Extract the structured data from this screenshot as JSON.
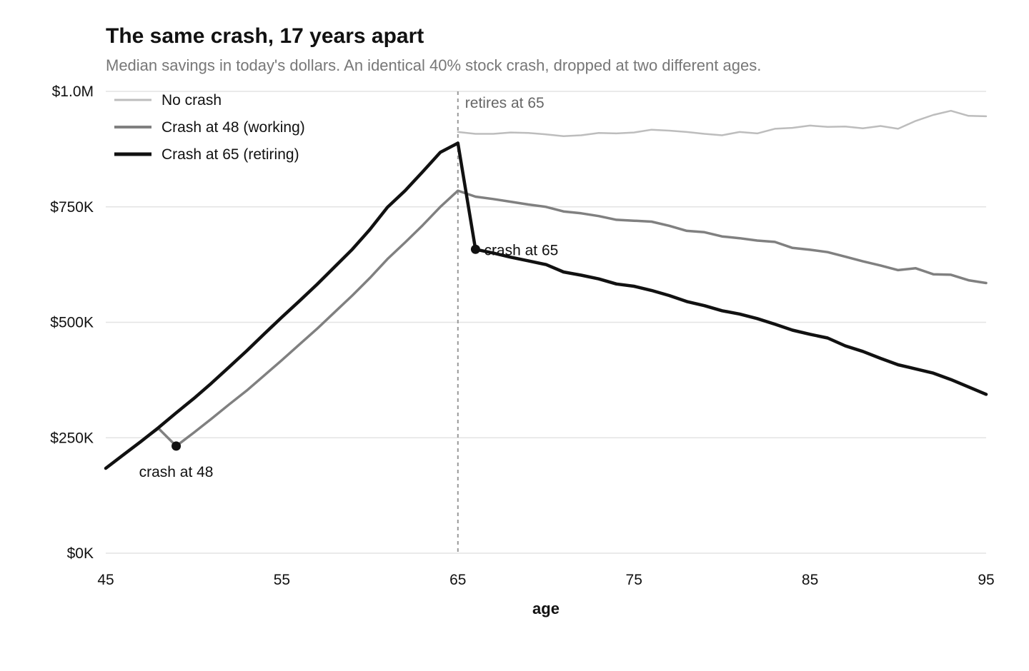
{
  "chart_data": {
    "type": "line",
    "title": "The same crash, 17 years apart",
    "subtitle": "Median savings in today's dollars. An identical 40% stock crash, dropped at two different ages.",
    "xlabel": "age",
    "ylabel": "",
    "xlim": [
      45,
      95
    ],
    "ylim": [
      0,
      1000000
    ],
    "x_ticks": [
      45,
      55,
      65,
      75,
      85,
      95
    ],
    "x_tick_labels": [
      "45",
      "55",
      "65",
      "75",
      "85",
      "95"
    ],
    "y_ticks": [
      0,
      250000,
      500000,
      750000,
      1000000
    ],
    "y_tick_labels": [
      "$0K",
      "$250K",
      "$500K",
      "$750K",
      "$1.0M"
    ],
    "grid": "horizontal",
    "legend_position": "top-left",
    "series": [
      {
        "name": "No crash",
        "color": "#bdbdbd",
        "x": [
          65,
          66,
          67,
          68,
          69,
          70,
          71,
          72,
          73,
          74,
          75,
          76,
          77,
          78,
          79,
          80,
          81,
          82,
          83,
          84,
          85,
          86,
          87,
          88,
          89,
          90,
          91,
          92,
          93,
          94,
          95
        ],
        "values": [
          912000,
          908000,
          908000,
          911000,
          910000,
          907000,
          903000,
          905000,
          910000,
          909000,
          911000,
          917000,
          915000,
          912000,
          908000,
          905000,
          912000,
          909000,
          919000,
          921000,
          926000,
          923000,
          924000,
          920000,
          925000,
          919000,
          936000,
          949000,
          958000,
          947000,
          946000
        ]
      },
      {
        "name": "Crash at 48 (working)",
        "color": "#808080",
        "x": [
          45,
          46,
          47,
          48,
          49,
          50,
          51,
          52,
          53,
          54,
          55,
          56,
          57,
          58,
          59,
          60,
          61,
          62,
          63,
          64,
          65,
          66,
          67,
          68,
          69,
          70,
          71,
          72,
          73,
          74,
          75,
          76,
          77,
          78,
          79,
          80,
          81,
          82,
          83,
          84,
          85,
          86,
          87,
          88,
          89,
          90,
          91,
          92,
          93,
          94,
          95
        ],
        "values": [
          184000,
          213000,
          242000,
          270000,
          232000,
          261000,
          291000,
          322000,
          352000,
          385000,
          418000,
          452000,
          486000,
          522000,
          558000,
          596000,
          637000,
          673000,
          710000,
          750000,
          785000,
          772000,
          767000,
          761000,
          755000,
          750000,
          740000,
          736000,
          730000,
          722000,
          720000,
          718000,
          709000,
          698000,
          695000,
          686000,
          682000,
          677000,
          674000,
          661000,
          657000,
          652000,
          642000,
          632000,
          623000,
          613000,
          617000,
          604000,
          603000,
          591000,
          585000
        ]
      },
      {
        "name": "Crash at 65 (retiring)",
        "color": "#111111",
        "x": [
          45,
          46,
          47,
          48,
          49,
          50,
          51,
          52,
          53,
          54,
          55,
          56,
          57,
          58,
          59,
          60,
          61,
          62,
          63,
          64,
          65,
          66,
          67,
          68,
          69,
          70,
          71,
          72,
          73,
          74,
          75,
          76,
          77,
          78,
          79,
          80,
          81,
          82,
          83,
          84,
          85,
          86,
          87,
          88,
          89,
          90,
          91,
          92,
          93,
          94,
          95
        ],
        "values": [
          184000,
          213000,
          242000,
          272000,
          304000,
          335000,
          368000,
          403000,
          438000,
          475000,
          511000,
          546000,
          582000,
          620000,
          658000,
          701000,
          749000,
          785000,
          826000,
          868000,
          888000,
          658000,
          650000,
          641000,
          633000,
          625000,
          609000,
          602000,
          594000,
          583000,
          578000,
          569000,
          558000,
          545000,
          536000,
          525000,
          518000,
          508000,
          496000,
          483000,
          474000,
          466000,
          449000,
          437000,
          422000,
          408000,
          399000,
          390000,
          376000,
          360000,
          344000
        ]
      }
    ],
    "annotations": [
      {
        "text": "crash at 48",
        "x": 49,
        "y": 232000
      },
      {
        "text": "crash at 65",
        "x": 66,
        "y": 658000
      },
      {
        "text": "retires at 65",
        "x": 65
      }
    ]
  }
}
